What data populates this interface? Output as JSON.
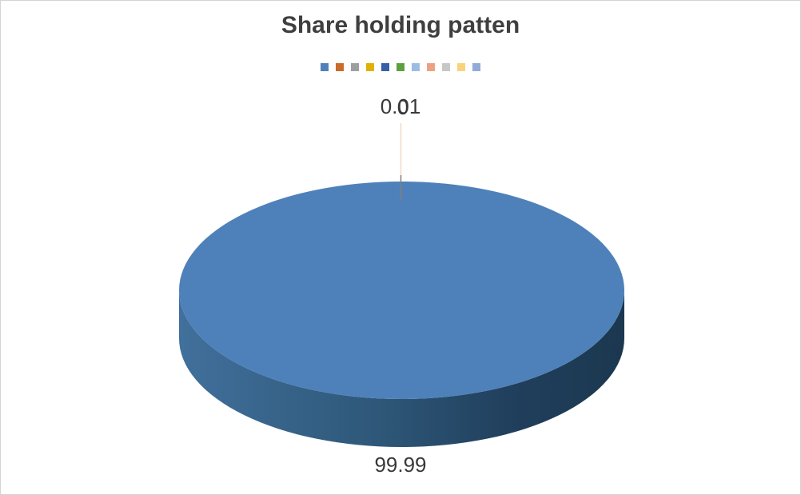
{
  "window": {
    "background": "#FFFFFF",
    "border_color": "#D4D4D4"
  },
  "chart_data": {
    "type": "pie",
    "style_3d": true,
    "title": "Share holding patten",
    "title_color": "#3F3F3F",
    "slices": [
      {
        "label": "99.99",
        "value": 99.99,
        "color": "#4E81BA"
      },
      {
        "label": "0.01",
        "value": 0.01,
        "color": "#CB6A2B"
      },
      {
        "label": "0",
        "value": 0.0,
        "color": "#9E9E9E"
      }
    ],
    "data_labels": {
      "top_primary": "0.01",
      "top_overlap": "0",
      "bottom": "99.99",
      "color": "#383838",
      "note": "two tiny-slice labels overlap at top center above a leader line"
    },
    "legend": {
      "position": "top",
      "entries_have_text": false,
      "colors": [
        "#4E81BA",
        "#CB6A2B",
        "#9E9E9E",
        "#DFB200",
        "#3760A6",
        "#5DA03F",
        "#9BBDE0",
        "#EDA183",
        "#C7C7C7",
        "#F8D37C",
        "#93A9D8"
      ]
    },
    "pie": {
      "top_color": "#4E81BA",
      "side_gradient": [
        {
          "offset": "0",
          "color": "#41709C"
        },
        {
          "offset": "0.45",
          "color": "#2E5778"
        },
        {
          "offset": "0.75",
          "color": "#203F5C"
        },
        {
          "offset": "1",
          "color": "#1C3850"
        }
      ],
      "leader_line_upper_color": "#F2D9C7",
      "leader_line_lower_color": "#7F7F7F"
    }
  }
}
